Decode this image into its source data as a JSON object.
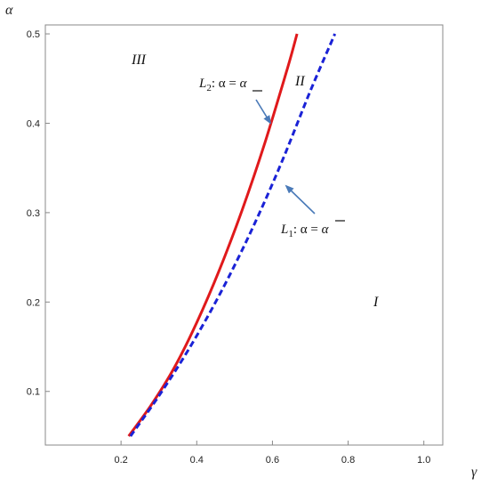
{
  "chart_data": {
    "type": "line",
    "title": "",
    "xlabel": "γ",
    "ylabel": "α",
    "xlim": [
      0.0,
      1.05
    ],
    "ylim": [
      0.04,
      0.51
    ],
    "xticks": [
      0.2,
      0.4,
      0.6,
      0.8,
      1.0
    ],
    "yticks": [
      0.1,
      0.2,
      0.3,
      0.4,
      0.5
    ],
    "xtick_labels": [
      "0.2",
      "0.4",
      "0.6",
      "0.8",
      "1.0"
    ],
    "ytick_labels": [
      "0.1",
      "0.2",
      "0.3",
      "0.4",
      "0.5"
    ],
    "grid": false,
    "series": [
      {
        "color": "#e0191b",
        "style": "solid",
        "x": [
          0.22,
          0.28,
          0.34,
          0.4,
          0.46,
          0.52,
          0.58,
          0.64,
          0.665
        ],
        "y": [
          0.05,
          0.085,
          0.126,
          0.177,
          0.236,
          0.303,
          0.378,
          0.462,
          0.5
        ]
      },
      {
        "color": "#1a22d6",
        "style": "dashed",
        "x": [
          0.225,
          0.3,
          0.38,
          0.46,
          0.54,
          0.62,
          0.7,
          0.765
        ],
        "y": [
          0.05,
          0.095,
          0.148,
          0.208,
          0.276,
          0.352,
          0.436,
          0.5
        ]
      }
    ],
    "annotations": {
      "curve_labels": [
        {
          "sub": "2",
          "head": "L",
          "body": ": α = ",
          "mark": "α",
          "mark_type": "underline"
        },
        {
          "sub": "1",
          "head": "L",
          "body": ": α = ",
          "mark": "α",
          "mark_type": "overline"
        }
      ],
      "regions": [
        "III",
        "II",
        "I"
      ],
      "arrow_color": "#4a7ab8"
    }
  }
}
